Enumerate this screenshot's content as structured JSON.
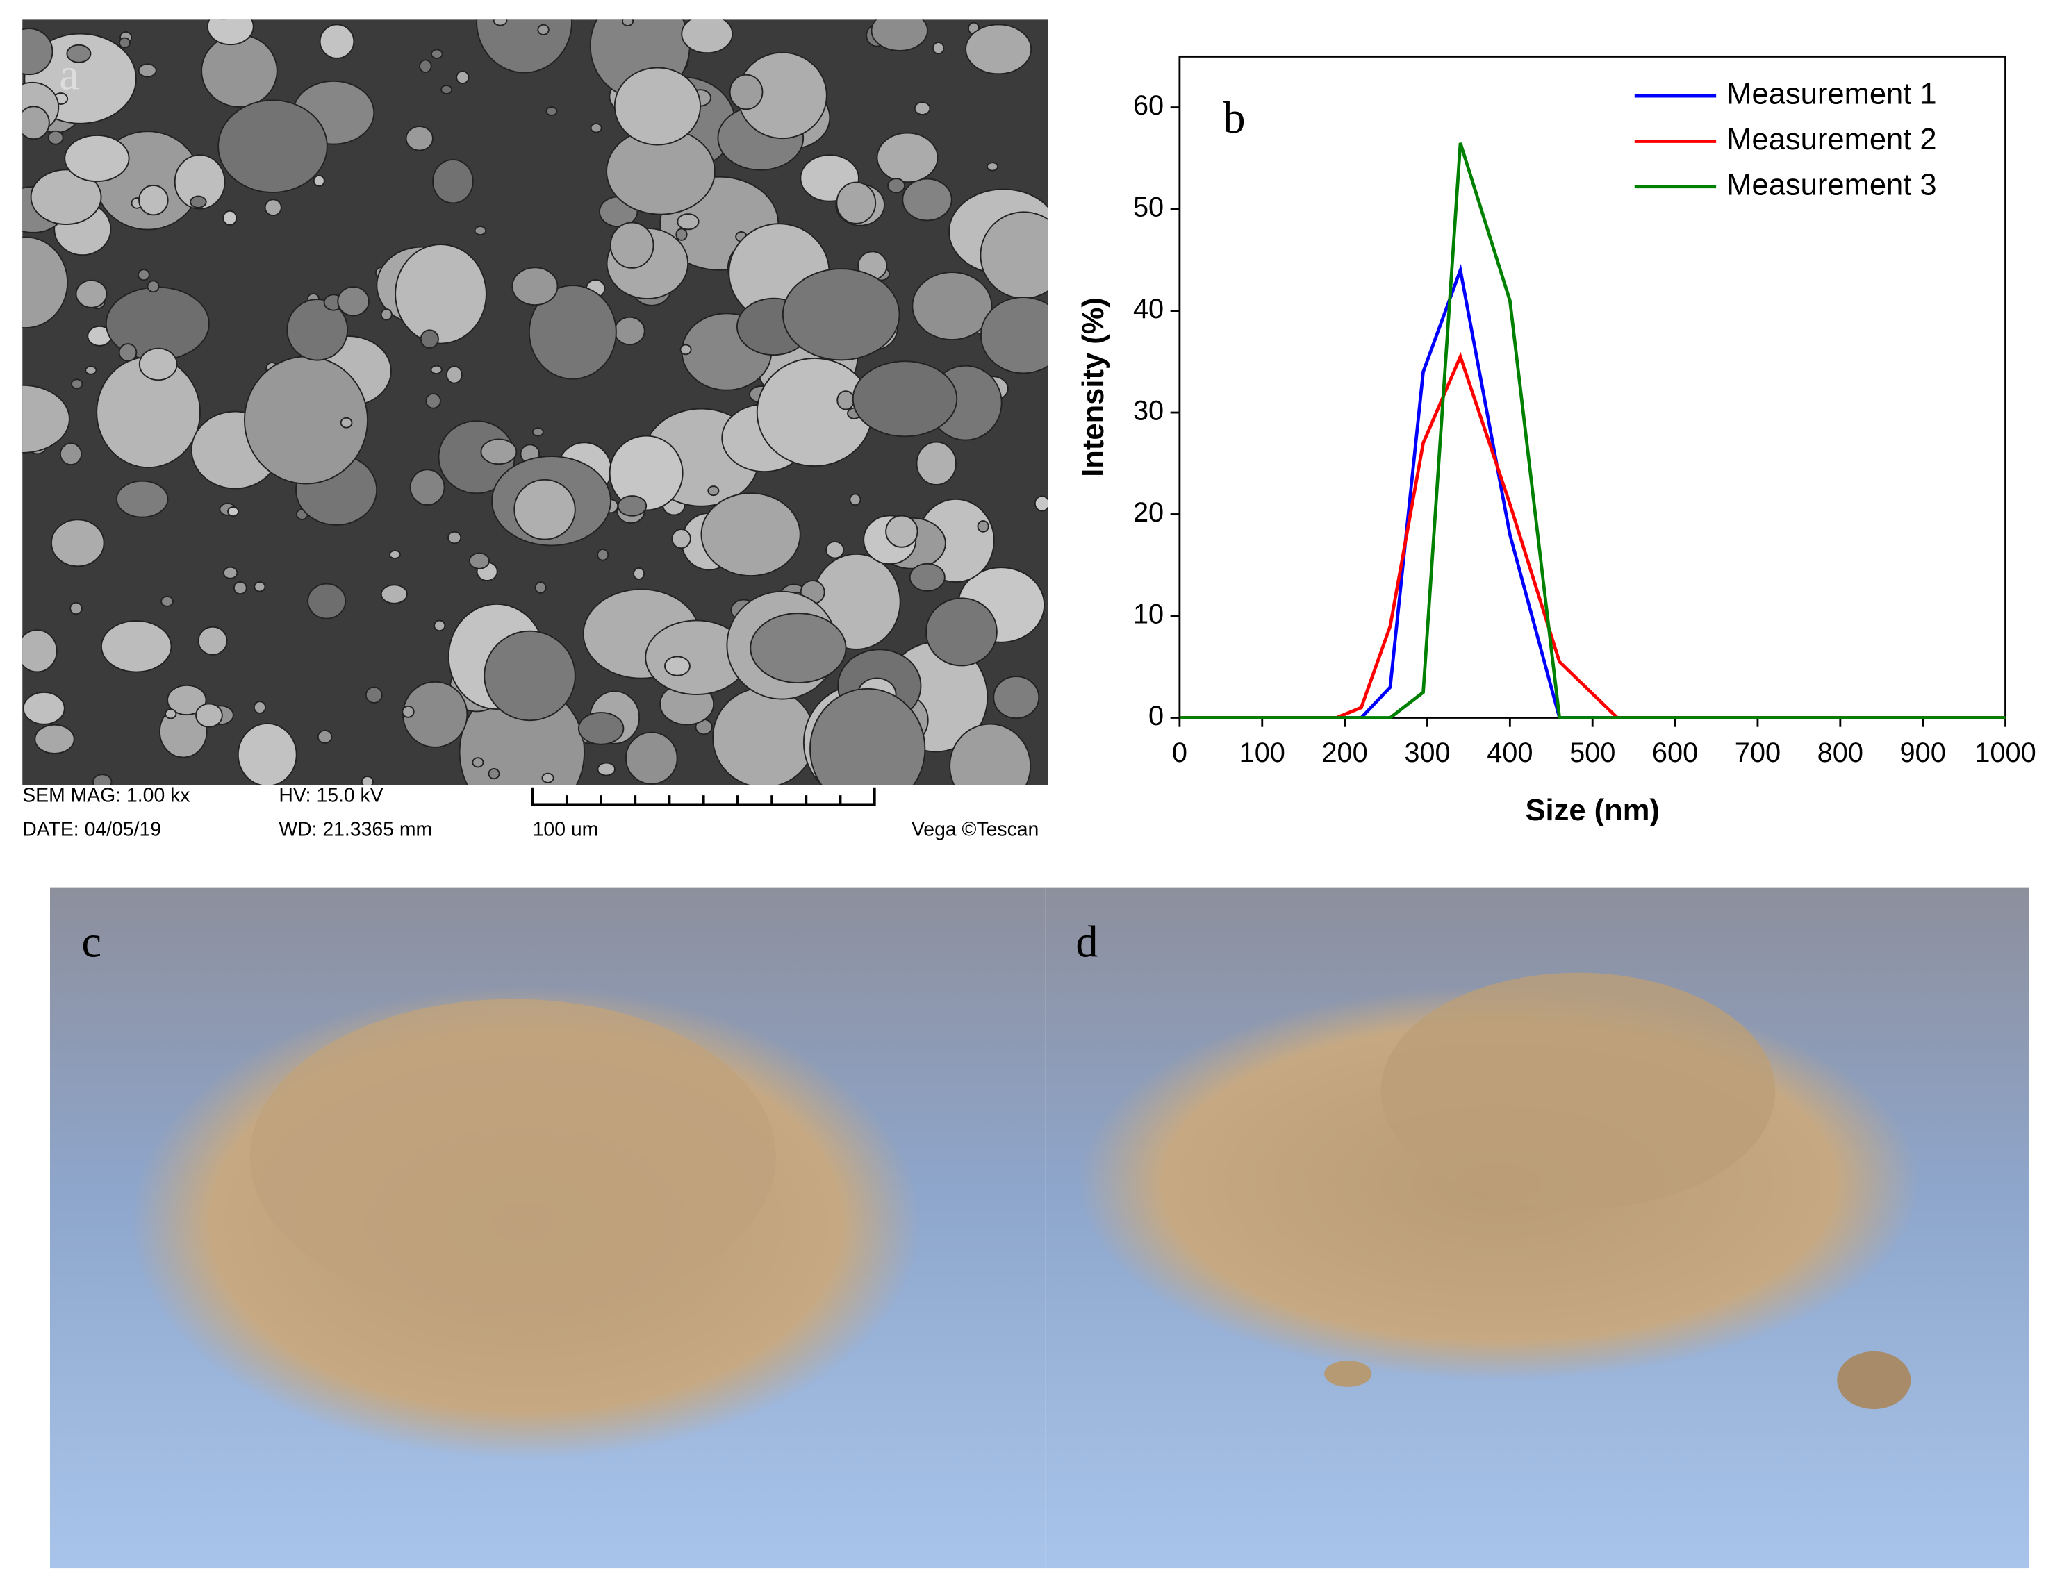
{
  "sem": {
    "label": "a",
    "mag": "SEM MAG: 1.00 kx",
    "hv": "HV: 15.0 kV",
    "date": "DATE: 04/05/19",
    "wd": "WD: 21.3365 mm",
    "scale": "100 um",
    "brand": "Vega ©Tescan"
  },
  "chart_data": {
    "type": "line",
    "label": "b",
    "xlabel": "Size (nm)",
    "ylabel": "Intensity (%)",
    "xlim": [
      0,
      1000
    ],
    "ylim": [
      0,
      65
    ],
    "xticks": [
      0,
      100,
      200,
      300,
      400,
      500,
      600,
      700,
      800,
      900,
      1000
    ],
    "yticks": [
      0,
      10,
      20,
      30,
      40,
      50,
      60
    ],
    "legend": "upper right",
    "series": [
      {
        "name": "Measurement 1",
        "color": "#0000ff",
        "x": [
          0,
          220,
          255,
          295,
          340,
          400,
          460,
          1000
        ],
        "values": [
          0,
          0,
          3,
          34,
          44,
          18,
          0,
          0
        ]
      },
      {
        "name": "Measurement 2",
        "color": "#ff0000",
        "x": [
          0,
          190,
          220,
          255,
          295,
          340,
          400,
          460,
          530,
          1000
        ],
        "values": [
          0,
          0,
          1,
          9,
          27,
          35.5,
          21,
          5.5,
          0,
          0
        ]
      },
      {
        "name": "Measurement 3",
        "color": "#008000",
        "x": [
          0,
          255,
          295,
          340,
          400,
          460,
          1000
        ],
        "values": [
          0,
          0,
          2.5,
          56.5,
          41,
          0,
          0
        ]
      }
    ]
  },
  "photos": [
    {
      "label": "c"
    },
    {
      "label": "d"
    }
  ]
}
